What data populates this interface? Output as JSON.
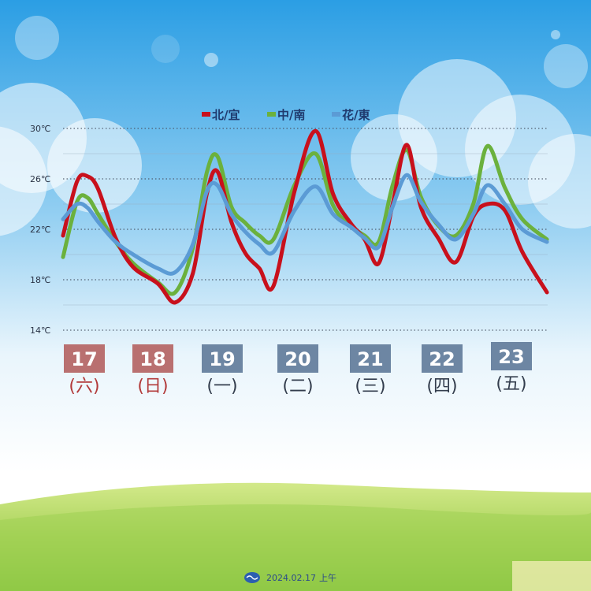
{
  "chart_data": {
    "type": "line",
    "title": "",
    "xlabel": "",
    "ylabel": "",
    "y_ticks": [
      "30℃",
      "26℃",
      "22℃",
      "18℃",
      "14℃"
    ],
    "y_tick_values": [
      30,
      26,
      22,
      18,
      14
    ],
    "ylim": [
      14,
      30
    ],
    "grid": true,
    "legend_placement": "top-center",
    "days": [
      {
        "date": "17",
        "weekday": "(六)",
        "weekend": true
      },
      {
        "date": "18",
        "weekday": "(日)",
        "weekend": true
      },
      {
        "date": "19",
        "weekday": "(一)",
        "weekend": false
      },
      {
        "date": "20",
        "weekday": "(二)",
        "weekend": false
      },
      {
        "date": "21",
        "weekday": "(三)",
        "weekend": false
      },
      {
        "date": "22",
        "weekday": "(四)",
        "weekend": false
      },
      {
        "date": "23",
        "weekday": "(五)",
        "weekend": false
      }
    ],
    "x_days": [
      0,
      0.2,
      0.35,
      0.5,
      0.75,
      1.0,
      1.35,
      1.6,
      1.85,
      2.05,
      2.2,
      2.4,
      2.6,
      2.8,
      3.0,
      3.3,
      3.6,
      3.85,
      4.1,
      4.3,
      4.5,
      4.7,
      4.9,
      5.1,
      5.35,
      5.6,
      5.85,
      6.05,
      6.3,
      6.55,
      6.9
    ],
    "series": [
      {
        "name": "北/宜",
        "color": "#c8101c",
        "values": [
          21.5,
          25.8,
          26.2,
          25.2,
          21.3,
          19.0,
          17.7,
          16.2,
          18.5,
          24.8,
          26.6,
          22.6,
          20.1,
          18.9,
          17.5,
          25.0,
          29.8,
          24.8,
          22.5,
          21.2,
          19.3,
          24.0,
          28.7,
          23.8,
          21.3,
          19.4,
          23.0,
          24.0,
          23.5,
          20.2,
          17.0
        ]
      },
      {
        "name": "中/南",
        "color": "#6bb13d",
        "values": [
          19.8,
          24.2,
          24.5,
          23.2,
          21.0,
          19.3,
          17.8,
          17.0,
          20.5,
          26.5,
          27.8,
          23.8,
          22.5,
          21.5,
          21.2,
          25.5,
          28.0,
          23.9,
          22.3,
          21.5,
          21.0,
          25.5,
          28.3,
          24.6,
          22.3,
          21.5,
          24.0,
          28.6,
          25.3,
          22.8,
          21.2
        ]
      },
      {
        "name": "花/東",
        "color": "#5b9bd5",
        "values": [
          22.8,
          24.0,
          23.7,
          22.6,
          21.0,
          20.0,
          18.9,
          18.6,
          20.8,
          25.0,
          25.5,
          23.2,
          21.8,
          20.8,
          20.2,
          23.5,
          25.4,
          23.2,
          22.2,
          21.3,
          20.6,
          23.8,
          26.3,
          24.2,
          22.4,
          21.2,
          23.2,
          25.5,
          24.0,
          22.0,
          21.0
        ]
      }
    ]
  },
  "footer": {
    "date": "2024.02.17",
    "period": "上午"
  }
}
